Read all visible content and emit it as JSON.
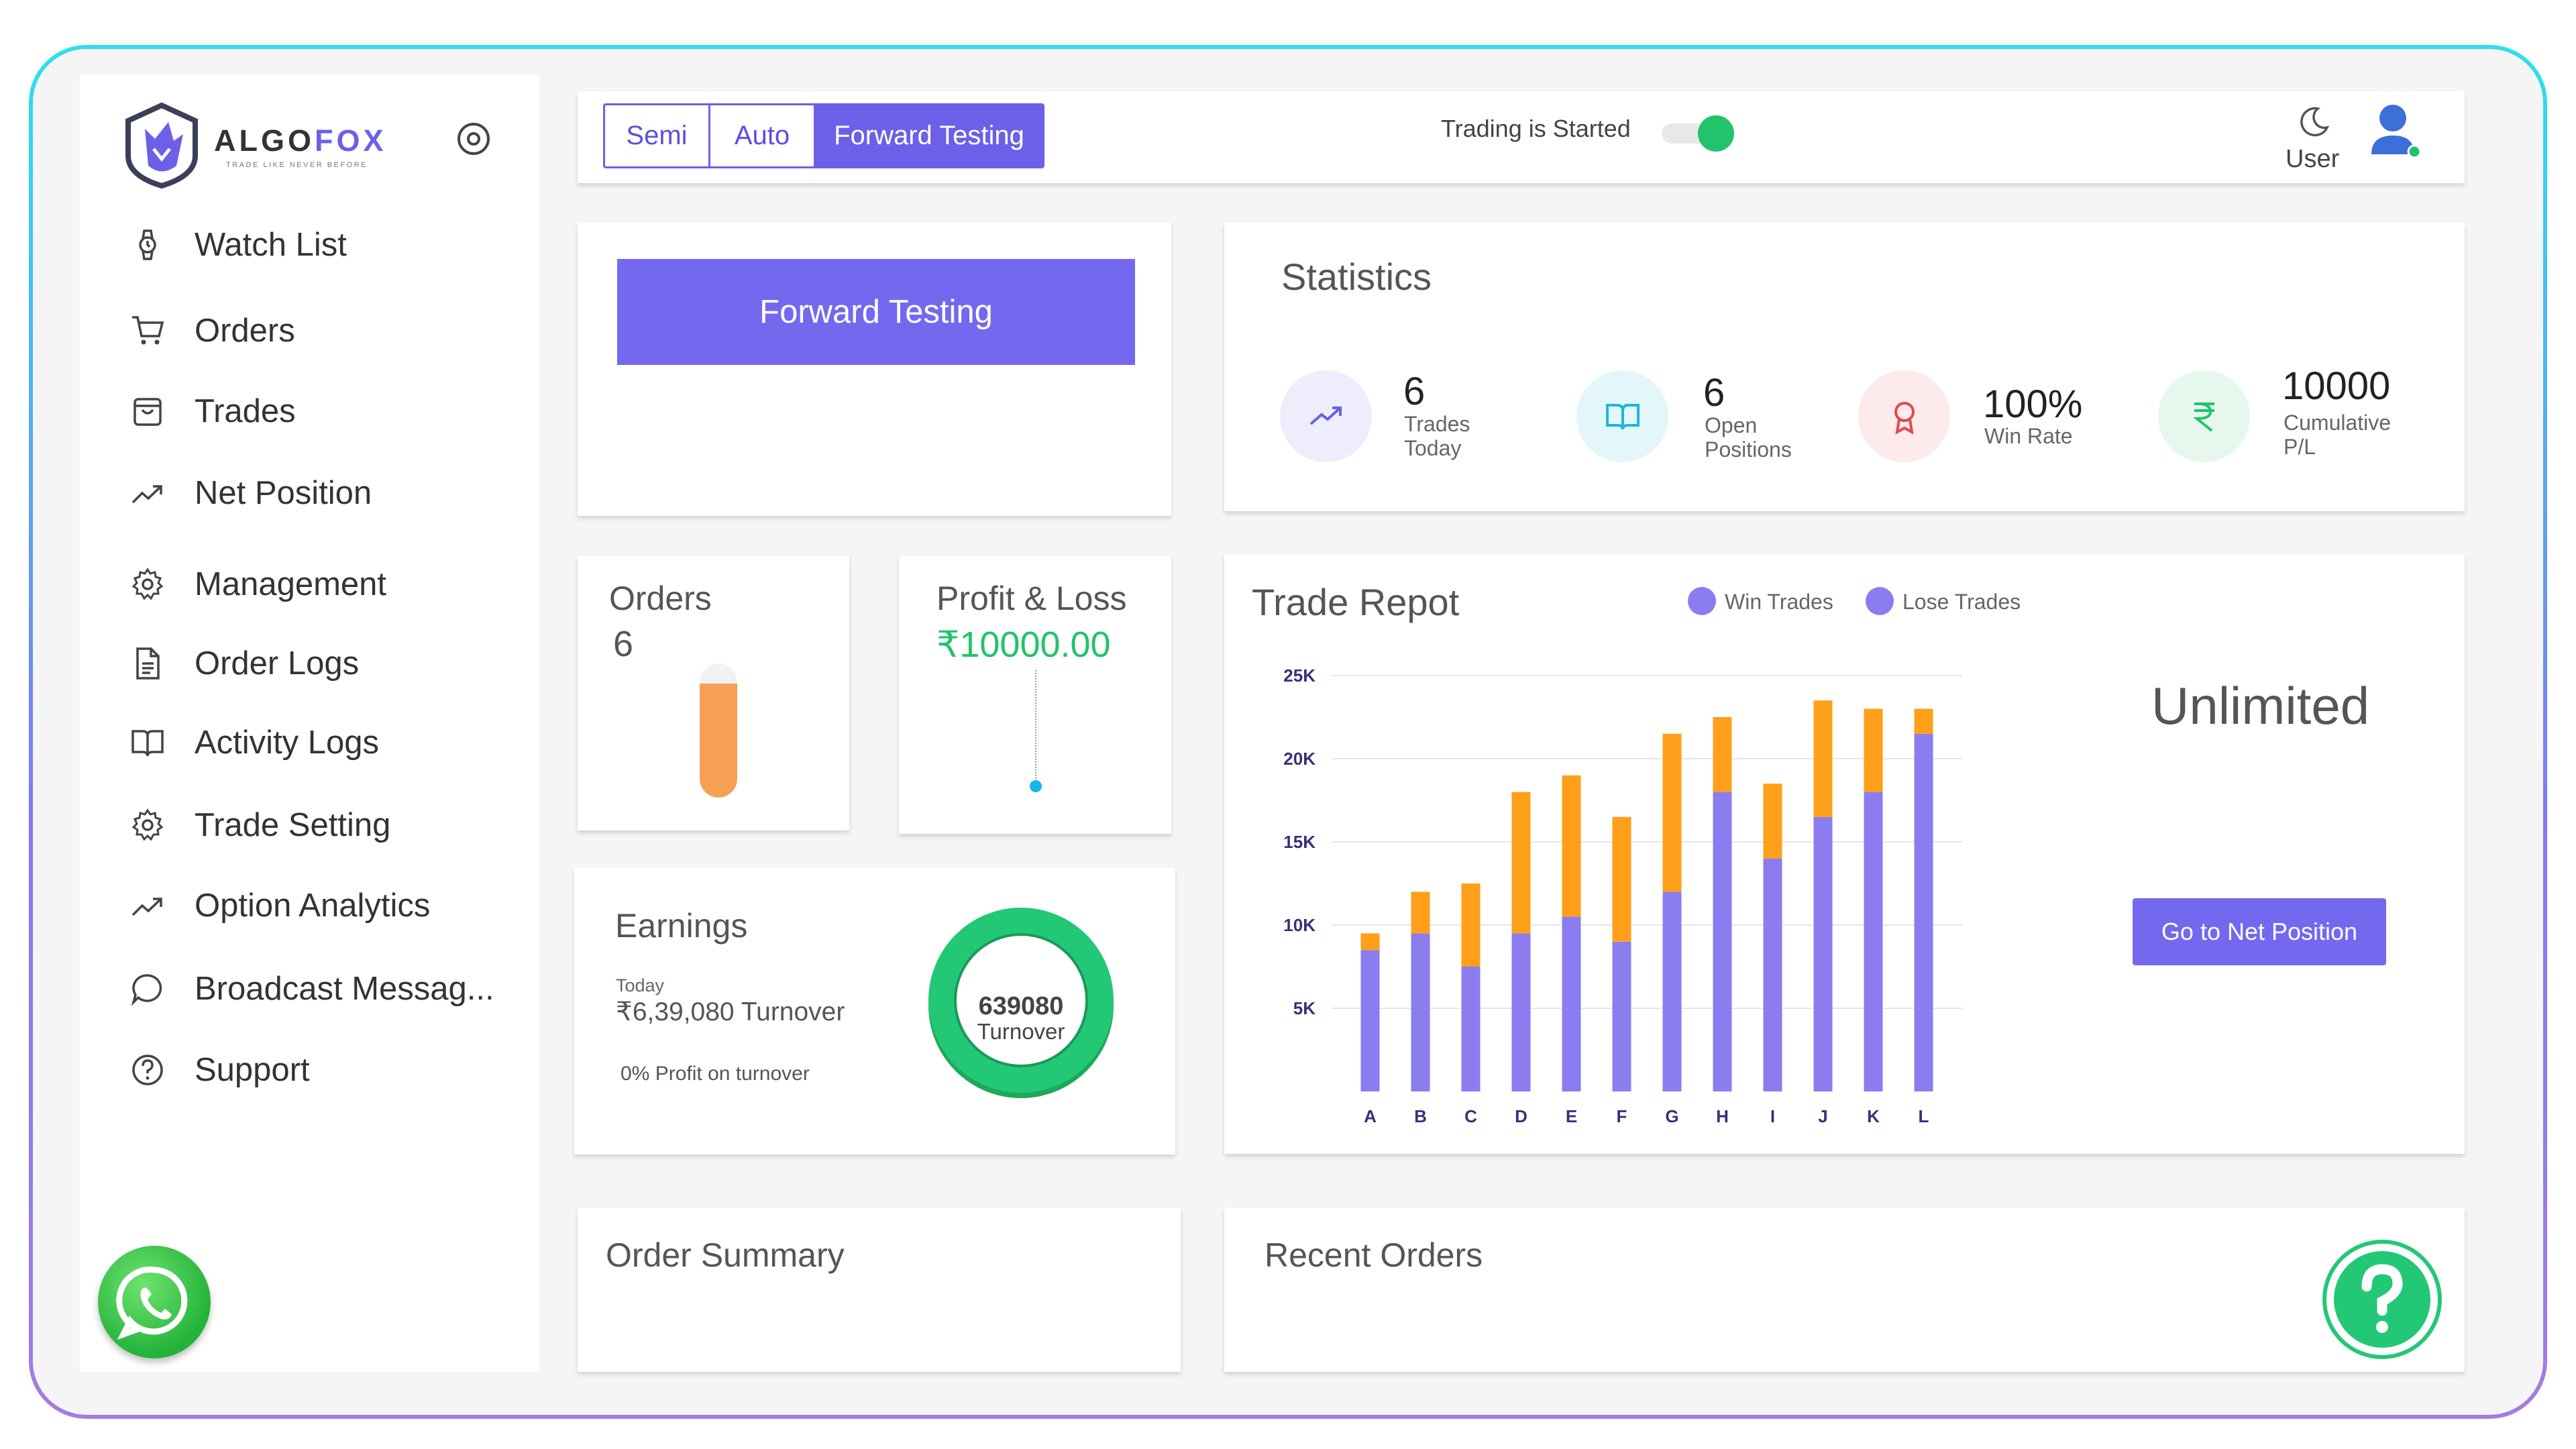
{
  "brand": {
    "name_a": "ALGO",
    "name_b": "FOX",
    "tagline": "TRADE LIKE NEVER BEFORE"
  },
  "sidebar": {
    "items": [
      {
        "label": "Watch List",
        "icon": "watch-icon"
      },
      {
        "label": "Orders",
        "icon": "cart-icon"
      },
      {
        "label": "Trades",
        "icon": "bag-icon"
      },
      {
        "label": "Net Position",
        "icon": "trend-icon"
      },
      {
        "label": "Management",
        "icon": "gear-icon"
      },
      {
        "label": "Order Logs",
        "icon": "document-icon"
      },
      {
        "label": "Activity Logs",
        "icon": "book-icon"
      },
      {
        "label": "Trade Setting",
        "icon": "gear-icon"
      },
      {
        "label": "Option Analytics",
        "icon": "trend-icon"
      },
      {
        "label": "Broadcast Messag...",
        "icon": "chat-icon"
      },
      {
        "label": "Support",
        "icon": "question-icon"
      }
    ]
  },
  "topbar": {
    "modes": [
      "Semi",
      "Auto",
      "Forward Testing"
    ],
    "active_mode": "Forward Testing",
    "trading_status": "Trading is Started",
    "trading_on": true,
    "user_label": "User"
  },
  "forward_testing": {
    "button_label": "Forward Testing"
  },
  "statistics": {
    "title": "Statistics",
    "items": [
      {
        "value": "6",
        "label_1": "Trades",
        "label_2": "Today",
        "icon": "trend-up-icon",
        "bg": "#eeedfb",
        "color": "#6c5fe8"
      },
      {
        "value": "6",
        "label_1": "Open",
        "label_2": "Positions",
        "icon": "book-open-icon",
        "bg": "#e3f7fb",
        "color": "#1fb6d9"
      },
      {
        "value": "100%",
        "label_1": "Win Rate",
        "label_2": "",
        "icon": "award-icon",
        "bg": "#fdeaea",
        "color": "#e5484d"
      },
      {
        "value": "10000",
        "label_1": "Cumulative",
        "label_2": "P/L",
        "icon": "rupee-icon",
        "bg": "#e6f8ee",
        "color": "#21c36b"
      }
    ]
  },
  "orders_card": {
    "title": "Orders",
    "value": "6",
    "fill_fraction": 0.85
  },
  "pl_card": {
    "title": "Profit & Loss",
    "value": "₹10000.00"
  },
  "earnings": {
    "title": "Earnings",
    "sub": "Today",
    "turnover": "₹6,39,080 Turnover",
    "profit_text": "0% Profit on turnover",
    "donut_value": "639080",
    "donut_label": "Turnover"
  },
  "trade_report": {
    "title": "Trade Repot",
    "legend": [
      "Win Trades",
      "Lose Trades"
    ],
    "side_text": "Unlimited",
    "button_label": "Go to Net Position"
  },
  "chart_data": {
    "type": "bar",
    "stacked": true,
    "categories": [
      "A",
      "B",
      "C",
      "D",
      "E",
      "F",
      "G",
      "H",
      "I",
      "J",
      "K",
      "L"
    ],
    "series": [
      {
        "name": "Win Trades",
        "color": "#8b7cf0",
        "values": [
          8500,
          9500,
          7500,
          9500,
          10500,
          9000,
          12000,
          18000,
          14000,
          16500,
          18000,
          21500
        ]
      },
      {
        "name": "Lose Trades",
        "color": "#ff9f1a",
        "values": [
          1000,
          2500,
          5000,
          8500,
          8500,
          7500,
          9500,
          4500,
          4500,
          7000,
          5000,
          1500
        ]
      }
    ],
    "yticks": [
      5000,
      10000,
      15000,
      20000,
      25000
    ],
    "ytick_labels": [
      "5K",
      "10K",
      "15K",
      "20K",
      "25K"
    ],
    "ylim": [
      0,
      25000
    ],
    "grid": true,
    "legend_position": "top"
  },
  "order_summary": {
    "title": "Order Summary"
  },
  "recent_orders": {
    "title": "Recent Orders"
  }
}
